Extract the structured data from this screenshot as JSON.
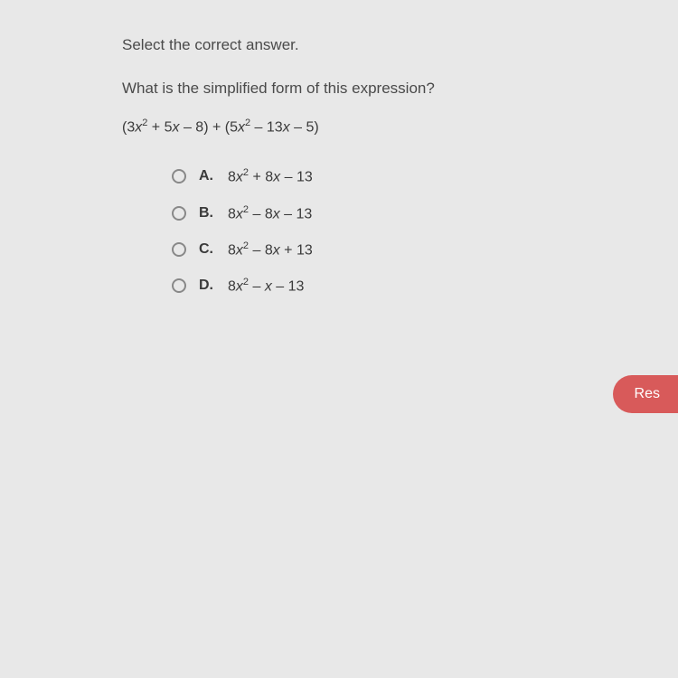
{
  "instruction": "Select the correct answer.",
  "question": "What is the simplified form of this expression?",
  "expression_html": "(3<i>x</i><sup>2</sup> + 5<i>x</i> – 8) + (5<i>x</i><sup>2</sup> – 13<i>x</i> – 5)",
  "options": [
    {
      "letter": "A.",
      "text_html": "8<i>x</i><sup>2</sup> + 8<i>x</i> – 13"
    },
    {
      "letter": "B.",
      "text_html": "8<i>x</i><sup>2</sup> – 8<i>x</i> – 13"
    },
    {
      "letter": "C.",
      "text_html": "8<i>x</i><sup>2</sup> – 8<i>x</i> + 13"
    },
    {
      "letter": "D.",
      "text_html": "8<i>x</i><sup>2</sup> – <i>x</i> – 13"
    }
  ],
  "button_label": "Res",
  "colors": {
    "background": "#e8e8e8",
    "text": "#4a4a4a",
    "button_bg": "#d85a5a",
    "button_text": "#ffffff",
    "radio_border": "#888"
  },
  "typography": {
    "instruction_fontsize": 17,
    "question_fontsize": 17,
    "expression_fontsize": 16,
    "option_fontsize": 16
  }
}
